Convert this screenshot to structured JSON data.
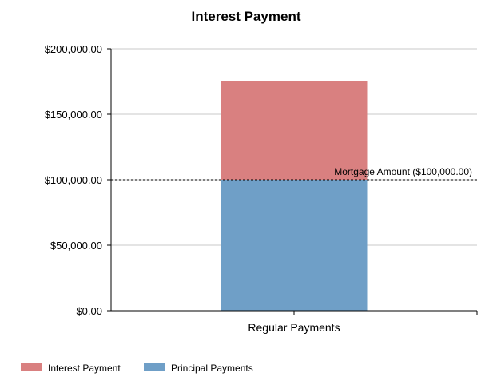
{
  "chart_data": {
    "type": "bar",
    "stacked": true,
    "title": "Interest Payment",
    "xlabel": "",
    "ylabel": "",
    "categories": [
      "Regular Payments"
    ],
    "series": [
      {
        "name": "Principal Payments",
        "values": [
          100000
        ],
        "color": "#6f9fc7"
      },
      {
        "name": "Interest Payment",
        "values": [
          75000
        ],
        "color": "#d98080"
      }
    ],
    "ylim": [
      0,
      200000
    ],
    "yticks": [
      0,
      50000,
      100000,
      150000,
      200000
    ],
    "ytick_labels": [
      "$0.00",
      "$50,000.00",
      "$100,000.00",
      "$150,000.00",
      "$200,000.00"
    ],
    "reference_line": {
      "value": 100000,
      "label": "Mortgage Amount ($100,000.00)",
      "style": "dashed"
    },
    "legend": {
      "position": "bottom-left",
      "entries": [
        "Interest Payment",
        "Principal Payments"
      ]
    },
    "grid": true,
    "colors": {
      "gridline": "#c8c8c8",
      "axis": "#000000"
    }
  }
}
